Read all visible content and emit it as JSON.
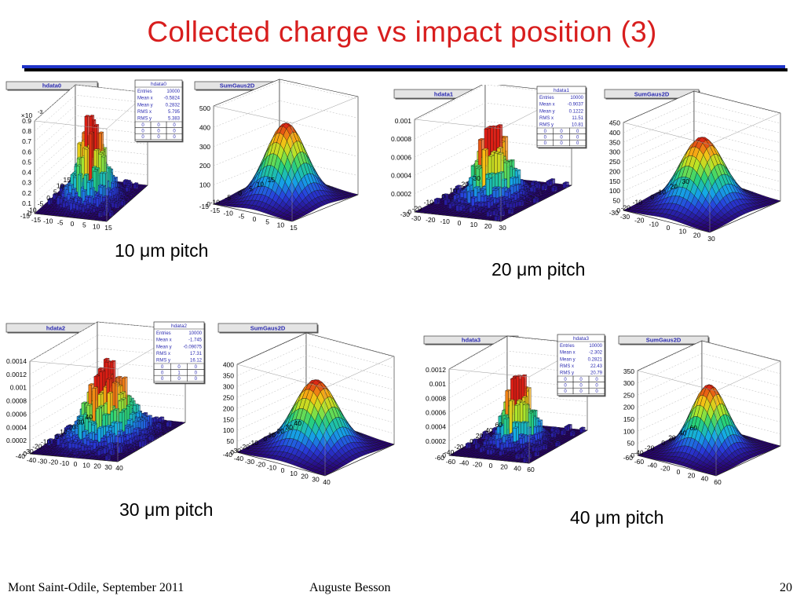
{
  "slide": {
    "title": "Collected charge vs impact position (3)",
    "footer_left": "Mont Saint-Odile, September 2011",
    "footer_center": "Auguste Besson",
    "page_number": "20",
    "accent_color": "#d81e1e",
    "rule_color": "#1f33c8"
  },
  "chart_data": [
    {
      "type": "3d-lego",
      "title": "hdata0",
      "caption": "10 μm pitch",
      "exponent_label": "×10",
      "exponent_power": "-3",
      "z_ticks": [
        "0",
        "0.1",
        "0.2",
        "0.3",
        "0.4",
        "0.5",
        "0.6",
        "0.7",
        "0.8",
        "0.9"
      ],
      "x_ticks": [
        "-15",
        "-10",
        "-5",
        "0",
        "5",
        "10",
        "15"
      ],
      "y_ticks": [
        "15",
        "10",
        "5",
        "0",
        "-5",
        "-10",
        "-15"
      ],
      "stats": {
        "name": "hdata0",
        "rows": [
          [
            "Entries",
            "10000"
          ],
          [
            "Mean x",
            "-0.5824"
          ],
          [
            "Mean y",
            "0.2832"
          ],
          [
            "RMS x",
            "5.795"
          ],
          [
            "RMS y",
            "5.383"
          ]
        ],
        "grid": [
          [
            "0",
            "0",
            "0"
          ],
          [
            "0",
            "0",
            "0"
          ],
          [
            "0",
            "0",
            "0"
          ]
        ]
      }
    },
    {
      "type": "3d-surface",
      "title": "SumGaus2D",
      "z_ticks": [
        "0",
        "100",
        "200",
        "300",
        "400",
        "500"
      ],
      "x_ticks": [
        "-15",
        "-10",
        "-5",
        "0",
        "5",
        "10",
        "15"
      ],
      "y_ticks": [
        "15",
        "10",
        "5",
        "0",
        "-5",
        "-10",
        "-15"
      ]
    },
    {
      "type": "3d-lego",
      "title": "hdata1",
      "caption": "20 μm pitch",
      "z_ticks": [
        "0",
        "0.0002",
        "0.0004",
        "0.0006",
        "0.0008",
        "0.001"
      ],
      "x_ticks": [
        "-30",
        "-20",
        "-10",
        "0",
        "10",
        "20",
        "30"
      ],
      "y_ticks": [
        "30",
        "20",
        "10",
        "0",
        "-10",
        "-20",
        "-30"
      ],
      "stats": {
        "name": "hdata1",
        "rows": [
          [
            "Entries",
            "10000"
          ],
          [
            "Mean x",
            "-0.9037"
          ],
          [
            "Mean y",
            "0.1222"
          ],
          [
            "RMS x",
            "11.51"
          ],
          [
            "RMS y",
            "10.81"
          ]
        ],
        "grid": [
          [
            "0",
            "0",
            "0"
          ],
          [
            "0",
            "0",
            "0"
          ],
          [
            "0",
            "0",
            "0"
          ]
        ]
      }
    },
    {
      "type": "3d-surface",
      "title": "SumGaus2D",
      "z_ticks": [
        "0",
        "50",
        "100",
        "150",
        "200",
        "250",
        "300",
        "350",
        "400",
        "450"
      ],
      "x_ticks": [
        "-30",
        "-20",
        "-10",
        "0",
        "10",
        "20",
        "30"
      ],
      "y_ticks": [
        "30",
        "20",
        "10",
        "0",
        "-10",
        "-20",
        "-30"
      ]
    },
    {
      "type": "3d-lego",
      "title": "hdata2",
      "caption": "30 μm pitch",
      "z_ticks": [
        "0",
        "0.0002",
        "0.0004",
        "0.0006",
        "0.0008",
        "0.001",
        "0.0012",
        "0.0014"
      ],
      "x_ticks": [
        "-40",
        "-30",
        "-20",
        "-10",
        "0",
        "10",
        "20",
        "30",
        "40"
      ],
      "y_ticks": [
        "40",
        "30",
        "20",
        "10",
        "0",
        "-10",
        "-20",
        "-30",
        "-40"
      ],
      "stats": {
        "name": "hdata2",
        "rows": [
          [
            "Entries",
            "10000"
          ],
          [
            "Mean x",
            "-1.745"
          ],
          [
            "Mean y",
            "-0.09075"
          ],
          [
            "RMS x",
            "17.31"
          ],
          [
            "RMS y",
            "16.12"
          ]
        ],
        "grid": [
          [
            "0",
            "0",
            "0"
          ],
          [
            "0",
            "1",
            "0"
          ],
          [
            "0",
            "0",
            "0"
          ]
        ]
      }
    },
    {
      "type": "3d-surface",
      "title": "SumGaus2D",
      "z_ticks": [
        "0",
        "50",
        "100",
        "150",
        "200",
        "250",
        "300",
        "350",
        "400"
      ],
      "x_ticks": [
        "-40",
        "-30",
        "-20",
        "-10",
        "0",
        "10",
        "20",
        "30",
        "40"
      ],
      "y_ticks": [
        "40",
        "30",
        "20",
        "10",
        "0",
        "-10",
        "-20",
        "-30",
        "-40"
      ]
    },
    {
      "type": "3d-lego",
      "title": "hdata3",
      "caption": "40 μm pitch",
      "z_ticks": [
        "0",
        "0.0002",
        "0.0004",
        "0.0006",
        "0.0008",
        "0.001",
        "0.0012"
      ],
      "x_ticks": [
        "-60",
        "-40",
        "-20",
        "0",
        "20",
        "40",
        "60"
      ],
      "y_ticks": [
        "60",
        "40",
        "20",
        "0",
        "-20",
        "-40",
        "-60"
      ],
      "stats": {
        "name": "hdata3",
        "rows": [
          [
            "Entries",
            "10000"
          ],
          [
            "Mean x",
            "-2.302"
          ],
          [
            "Mean y",
            "0.2821"
          ],
          [
            "RMS x",
            "22.43"
          ],
          [
            "RMS y",
            "20.79"
          ]
        ],
        "grid": [
          [
            "0",
            "0",
            "0"
          ],
          [
            "0",
            "0",
            "0"
          ],
          [
            "0",
            "0",
            "0"
          ]
        ]
      }
    },
    {
      "type": "3d-surface",
      "title": "SumGaus2D",
      "z_ticks": [
        "0",
        "50",
        "100",
        "150",
        "200",
        "250",
        "300",
        "350"
      ],
      "x_ticks": [
        "-60",
        "-40",
        "-20",
        "0",
        "20",
        "40",
        "60"
      ],
      "y_ticks": [
        "60",
        "40",
        "20",
        "0",
        "-20",
        "-40",
        "-60"
      ]
    }
  ]
}
